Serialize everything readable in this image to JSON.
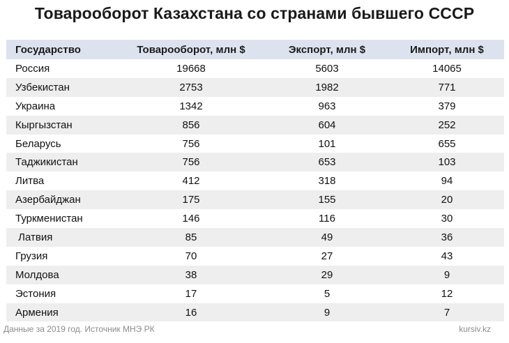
{
  "title": "Товарооборот Казахстана со странами бывшего СССР",
  "table": {
    "headers": [
      "Государство",
      "Товарооборот, млн $",
      "Экспорт, млн $",
      "Импорт, млн $"
    ],
    "rows": [
      [
        "Россия",
        "19668",
        "5603",
        "14065"
      ],
      [
        "Узбекистан",
        "2753",
        "1982",
        "771"
      ],
      [
        "Украина",
        "1342",
        "963",
        "379"
      ],
      [
        "Кыргызстан",
        "856",
        "604",
        "252"
      ],
      [
        "Беларусь",
        "756",
        "101",
        "655"
      ],
      [
        "Таджикистан",
        "756",
        "653",
        "103"
      ],
      [
        "Литва",
        "412",
        "318",
        "94"
      ],
      [
        "Азербайджан",
        "175",
        "155",
        "20"
      ],
      [
        "Туркменистан",
        "146",
        "116",
        "30"
      ],
      [
        " Латвия",
        "85",
        "49",
        "36"
      ],
      [
        "Грузия",
        "70",
        "27",
        "43"
      ],
      [
        "Молдова",
        "38",
        "29",
        "9"
      ],
      [
        "Эстония",
        "17",
        "5",
        "12"
      ],
      [
        "Армения",
        "16",
        "9",
        "7"
      ]
    ]
  },
  "footer": {
    "source": "Данные за 2019 год. Источник МНЭ РК",
    "site": "kursiv.kz"
  }
}
